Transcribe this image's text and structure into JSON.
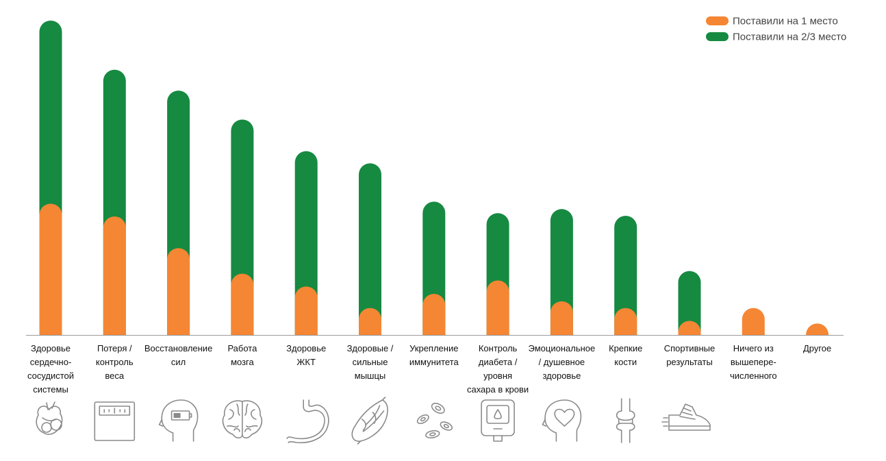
{
  "colors": {
    "first": "#f58634",
    "second": "#168a41",
    "axis": "#9a9a9a",
    "icon": "#8a8a8a"
  },
  "legend": [
    {
      "label": "Поставили на 1 место",
      "color": "#f58634"
    },
    {
      "label": "Поставили на 2/3 место",
      "color": "#168a41"
    }
  ],
  "chart_data": {
    "type": "bar",
    "stacked": true,
    "legend_position": "top-right",
    "grid": false,
    "ylim": [
      0,
      47
    ],
    "categories": [
      "Здоровье сердечно-сосудистой системы",
      "Потеря / контроль веса",
      "Восстановление сил",
      "Работа мозга",
      "Здоровье ЖКТ",
      "Здоровые / сильные мышцы",
      "Укрепление иммунитета",
      "Контроль диабета / уровня сахара в крови",
      "Эмоциональное / душевное здоровье",
      "Крепкие кости",
      "Спортивные результаты",
      "Ничего из вышеперечисленного",
      "Другое"
    ],
    "category_lines": [
      [
        "Здоровье",
        "сердечно-",
        "сосудистой",
        "системы"
      ],
      [
        "Потеря /",
        "контроль",
        "веса"
      ],
      [
        "Восстановление",
        "сил"
      ],
      [
        "Работа",
        "мозга"
      ],
      [
        "Здоровье",
        "ЖКТ"
      ],
      [
        "Здоровые /",
        "сильные",
        "мышцы"
      ],
      [
        "Укрепление",
        "иммунитета"
      ],
      [
        "Контроль",
        "диабета /",
        "уровня",
        "сахара в крови"
      ],
      [
        "Эмоциональное",
        "/ душевное",
        "здоровье"
      ],
      [
        "Крепкие",
        "кости"
      ],
      [
        "Спортивные",
        "результаты"
      ],
      [
        "Ничего из",
        "вышепере-",
        "численного"
      ],
      [
        "Другое"
      ]
    ],
    "series": [
      {
        "name": "Поставили на 1 место",
        "values": [
          19.5,
          17.6,
          12.9,
          9.1,
          7.2,
          4.0,
          6.1,
          8.1,
          5.0,
          4.0,
          2.1,
          4.0,
          1.7
        ]
      },
      {
        "name": "Поставили на 2/3 место",
        "values": [
          27.2,
          21.8,
          23.4,
          22.9,
          20.1,
          21.5,
          13.7,
          10.0,
          13.7,
          13.7,
          7.4,
          0,
          0
        ]
      }
    ],
    "icons": [
      "heart-icon",
      "scale-icon",
      "head-battery-icon",
      "brain-icon",
      "stomach-icon",
      "muscle-icon",
      "pills-icon",
      "glucose-meter-icon",
      "head-heart-icon",
      "bone-joint-icon",
      "sneaker-icon",
      "",
      ""
    ]
  }
}
